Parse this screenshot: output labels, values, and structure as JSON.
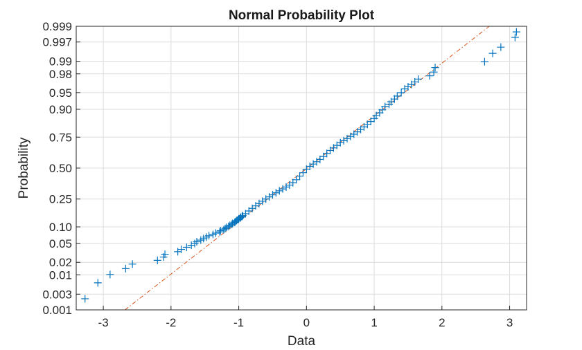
{
  "chart_data": {
    "type": "scatter",
    "title": "Normal Probability Plot",
    "xlabel": "Data",
    "ylabel": "Probability",
    "xlim": [
      -3.4,
      3.25
    ],
    "x_ticks": [
      -3,
      -2,
      -1,
      0,
      1,
      2,
      3
    ],
    "x_tick_labels": [
      "-3",
      "-2",
      "-1",
      "0",
      "1",
      "2",
      "3"
    ],
    "y_scale": "normal-probability",
    "ylim": [
      0.001,
      0.999
    ],
    "y_ticks": [
      0.001,
      0.003,
      0.01,
      0.02,
      0.05,
      0.1,
      0.25,
      0.5,
      0.75,
      0.9,
      0.95,
      0.98,
      0.99,
      0.997,
      0.999
    ],
    "y_tick_labels": [
      "0.001",
      "0.003",
      "0.01",
      "0.02",
      "0.05",
      "0.10",
      "0.25",
      "0.50",
      "0.75",
      "0.90",
      "0.95",
      "0.98",
      "0.99",
      "0.997",
      "0.999"
    ],
    "grid": true,
    "marker": "+",
    "marker_color": "#0072BD",
    "reference_line": {
      "style": "dash-dot",
      "color": "#D95319",
      "points": [
        [
          -2.68,
          0.001
        ],
        [
          2.7,
          0.999
        ]
      ]
    },
    "series": [
      {
        "points": [
          [
            -3.27,
            0.0022
          ],
          [
            -3.08,
            0.0062
          ],
          [
            -2.9,
            0.0102
          ],
          [
            -2.67,
            0.0142
          ],
          [
            -2.57,
            0.0182
          ],
          [
            -2.2,
            0.0222
          ],
          [
            -2.11,
            0.0262
          ],
          [
            -2.09,
            0.0302
          ],
          [
            -1.9,
            0.0342
          ],
          [
            -1.85,
            0.0382
          ],
          [
            -1.77,
            0.0422
          ],
          [
            -1.7,
            0.0462
          ],
          [
            -1.65,
            0.0502
          ],
          [
            -1.62,
            0.0542
          ],
          [
            -1.56,
            0.0582
          ],
          [
            -1.52,
            0.0622
          ],
          [
            -1.48,
            0.0662
          ],
          [
            -1.44,
            0.0702
          ],
          [
            -1.38,
            0.0742
          ],
          [
            -1.34,
            0.0782
          ],
          [
            -1.28,
            0.0822
          ],
          [
            -1.27,
            0.0862
          ],
          [
            -1.22,
            0.0902
          ],
          [
            -1.2,
            0.0942
          ],
          [
            -1.18,
            0.0982
          ],
          [
            -1.15,
            0.1022
          ],
          [
            -1.13,
            0.1062
          ],
          [
            -1.1,
            0.1102
          ],
          [
            -1.09,
            0.1142
          ],
          [
            -1.06,
            0.1182
          ],
          [
            -1.05,
            0.1222
          ],
          [
            -1.03,
            0.1262
          ],
          [
            -1.01,
            0.1302
          ],
          [
            -1.0,
            0.1342
          ],
          [
            -0.98,
            0.1382
          ],
          [
            -0.97,
            0.1422
          ],
          [
            -0.95,
            0.1462
          ],
          [
            -0.94,
            0.1502
          ],
          [
            -0.9,
            0.16
          ],
          [
            -0.85,
            0.175
          ],
          [
            -0.8,
            0.19
          ],
          [
            -0.75,
            0.205
          ],
          [
            -0.7,
            0.22
          ],
          [
            -0.65,
            0.235
          ],
          [
            -0.6,
            0.25
          ],
          [
            -0.55,
            0.265
          ],
          [
            -0.5,
            0.28
          ],
          [
            -0.45,
            0.295
          ],
          [
            -0.4,
            0.31
          ],
          [
            -0.35,
            0.325
          ],
          [
            -0.3,
            0.34
          ],
          [
            -0.25,
            0.355
          ],
          [
            -0.2,
            0.375
          ],
          [
            -0.15,
            0.4
          ],
          [
            -0.1,
            0.43
          ],
          [
            -0.05,
            0.46
          ],
          [
            0.0,
            0.49
          ],
          [
            0.05,
            0.515
          ],
          [
            0.1,
            0.535
          ],
          [
            0.15,
            0.555
          ],
          [
            0.2,
            0.575
          ],
          [
            0.25,
            0.6
          ],
          [
            0.3,
            0.625
          ],
          [
            0.35,
            0.65
          ],
          [
            0.4,
            0.67
          ],
          [
            0.45,
            0.69
          ],
          [
            0.5,
            0.71
          ],
          [
            0.55,
            0.725
          ],
          [
            0.6,
            0.74
          ],
          [
            0.65,
            0.755
          ],
          [
            0.7,
            0.77
          ],
          [
            0.75,
            0.785
          ],
          [
            0.8,
            0.8
          ],
          [
            0.85,
            0.815
          ],
          [
            0.9,
            0.83
          ],
          [
            0.95,
            0.845
          ],
          [
            1.0,
            0.86
          ],
          [
            1.03,
            0.8738
          ],
          [
            1.08,
            0.8858
          ],
          [
            1.12,
            0.8978
          ],
          [
            1.16,
            0.9098
          ],
          [
            1.22,
            0.9178
          ],
          [
            1.25,
            0.9258
          ],
          [
            1.3,
            0.9338
          ],
          [
            1.34,
            0.9418
          ],
          [
            1.4,
            0.9498
          ],
          [
            1.45,
            0.9578
          ],
          [
            1.5,
            0.9618
          ],
          [
            1.55,
            0.9658
          ],
          [
            1.6,
            0.9698
          ],
          [
            1.65,
            0.9738
          ],
          [
            1.82,
            0.9778
          ],
          [
            1.88,
            0.9818
          ],
          [
            1.9,
            0.9858
          ],
          [
            2.63,
            0.9898
          ],
          [
            2.75,
            0.9938
          ],
          [
            2.87,
            0.9958
          ],
          [
            3.08,
            0.9978
          ],
          [
            3.1,
            0.9985
          ]
        ]
      }
    ]
  }
}
